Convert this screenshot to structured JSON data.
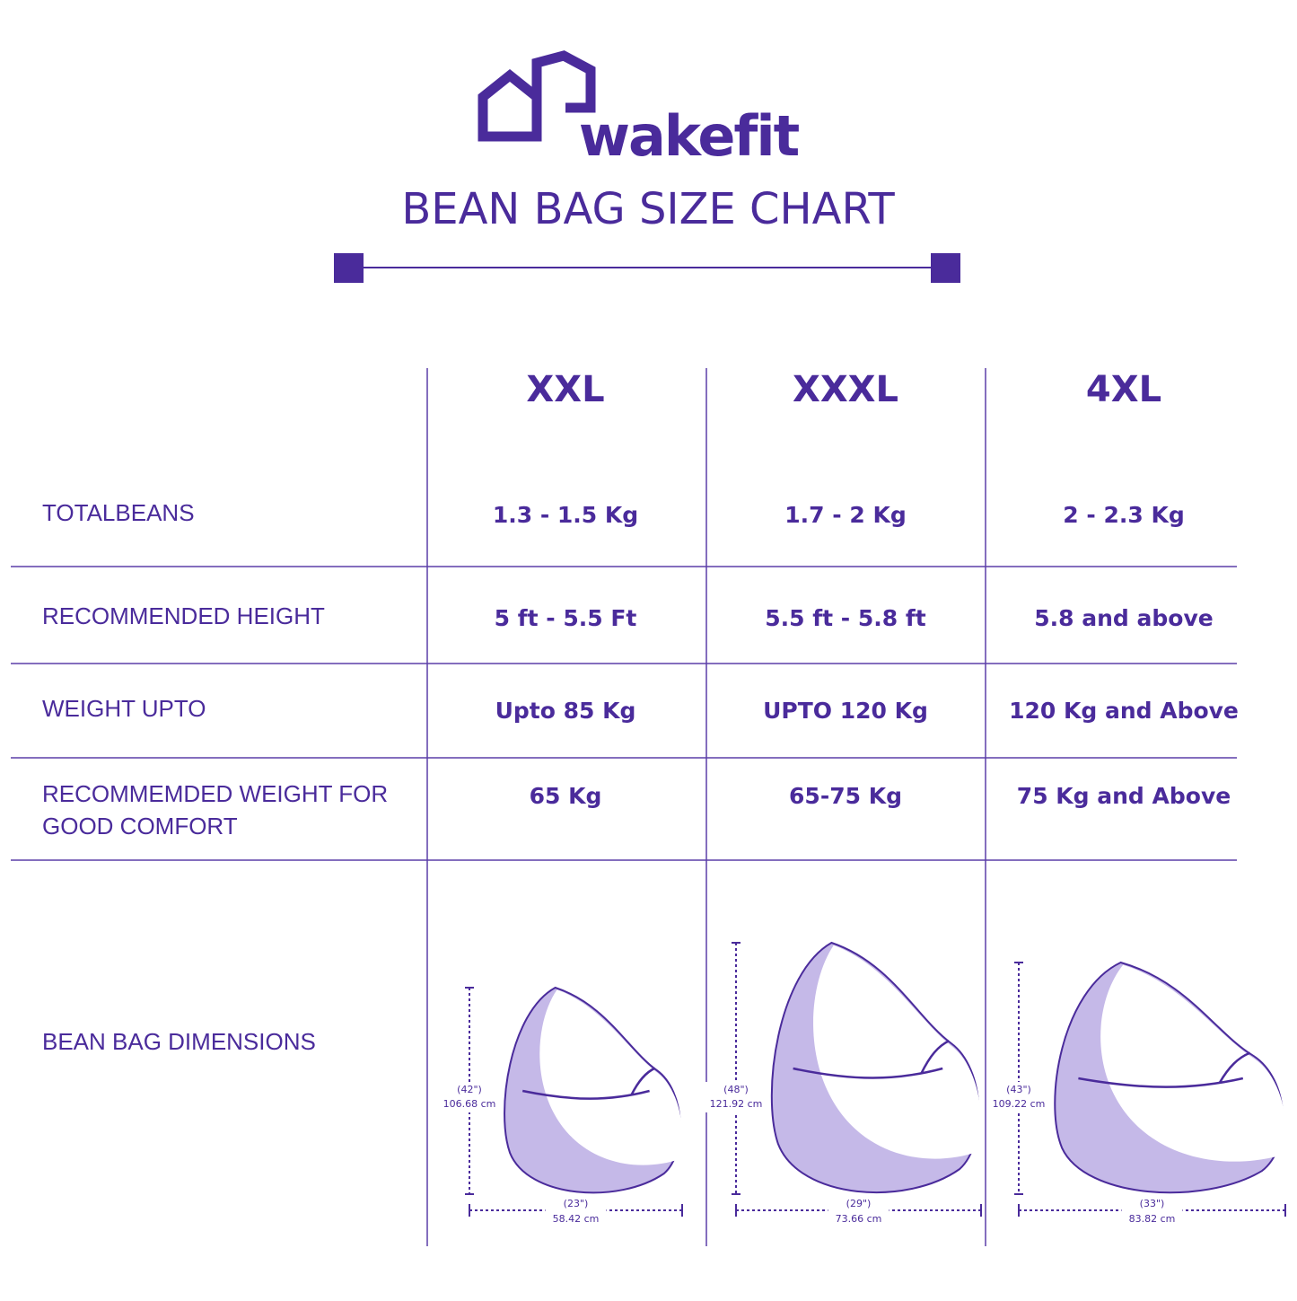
{
  "brand": "wakefit",
  "title": "BEAN BAG SIZE CHART",
  "table": {
    "columns": [
      "XXL",
      "XXXL",
      "4XL"
    ],
    "rows": [
      {
        "label": [
          "TOTALBEANS"
        ],
        "cells": [
          "1.3 - 1.5 Kg",
          "1.7 - 2 Kg",
          "2 - 2.3 Kg"
        ]
      },
      {
        "label": [
          "RECOMMENDED HEIGHT"
        ],
        "cells": [
          "5 ft - 5.5 Ft",
          "5.5 ft - 5.8 ft",
          "5.8 and above"
        ]
      },
      {
        "label": [
          "WEIGHT UPTO"
        ],
        "cells": [
          "Upto 85 Kg",
          "UPTO 120 Kg",
          "120 Kg and Above"
        ]
      },
      {
        "label": [
          "RECOMMEMDED WEIGHT FOR",
          "GOOD COMFORT"
        ],
        "cells": [
          "65 Kg",
          "65-75 Kg",
          "75 Kg and Above"
        ]
      }
    ],
    "dimensions": {
      "label": "BEAN BAG DIMENSIONS",
      "bags": [
        {
          "height_in": "(42\")",
          "height_cm": "106.68 cm",
          "width_in": "(23\")",
          "width_cm": "58.42 cm"
        },
        {
          "height_in": "(48\")",
          "height_cm": "121.92 cm",
          "width_in": "(29\")",
          "width_cm": "73.66 cm"
        },
        {
          "height_in": "(43\")",
          "height_cm": "109.22 cm",
          "width_in": "(33\")",
          "width_cm": "83.82 cm"
        }
      ]
    }
  }
}
